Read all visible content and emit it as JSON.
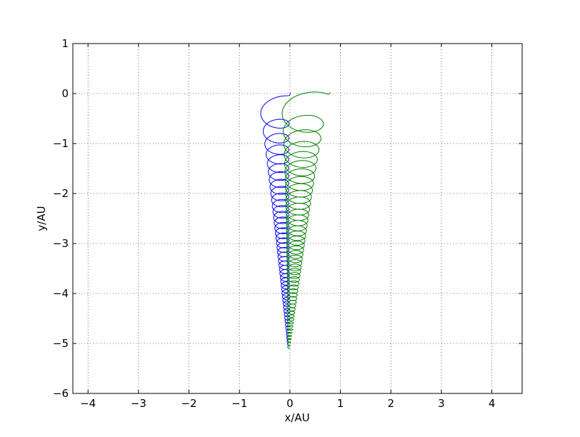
{
  "chart_data": {
    "type": "line",
    "xlabel": "x/AU",
    "ylabel": "y/AU",
    "xlim": [
      -4.3,
      4.6
    ],
    "ylim": [
      -6,
      1
    ],
    "grid": true,
    "grid_style": "dotted",
    "x_ticks": [
      -4,
      -3,
      -2,
      -1,
      0,
      1,
      2,
      3,
      4
    ],
    "x_tick_labels": [
      "−4",
      "−3",
      "−2",
      "−1",
      "0",
      "1",
      "2",
      "3",
      "4"
    ],
    "y_ticks": [
      1,
      0,
      -1,
      -2,
      -3,
      -4,
      -5,
      -6
    ],
    "y_tick_labels": [
      "1",
      "0",
      "−1",
      "−2",
      "−3",
      "−4",
      "−5",
      "−6"
    ],
    "series": [
      {
        "color": "#0000ff",
        "shape": "spiral of shrinking loops descending from the top to the bottom of the plot",
        "start_center": [
          -0.32,
          0.02
        ],
        "start_radius": 0.33,
        "end_center": [
          -0.02,
          -5.1
        ],
        "end_radius": 0.02,
        "loops": 46
      },
      {
        "color": "#008000",
        "shape": "spiral of shrinking loops descending from the top to the bottom of the plot",
        "start_center": [
          0.3,
          0.02
        ],
        "start_radius": 0.5,
        "end_center": [
          -0.02,
          -5.1
        ],
        "end_radius": 0.02,
        "loops": 46
      }
    ]
  }
}
